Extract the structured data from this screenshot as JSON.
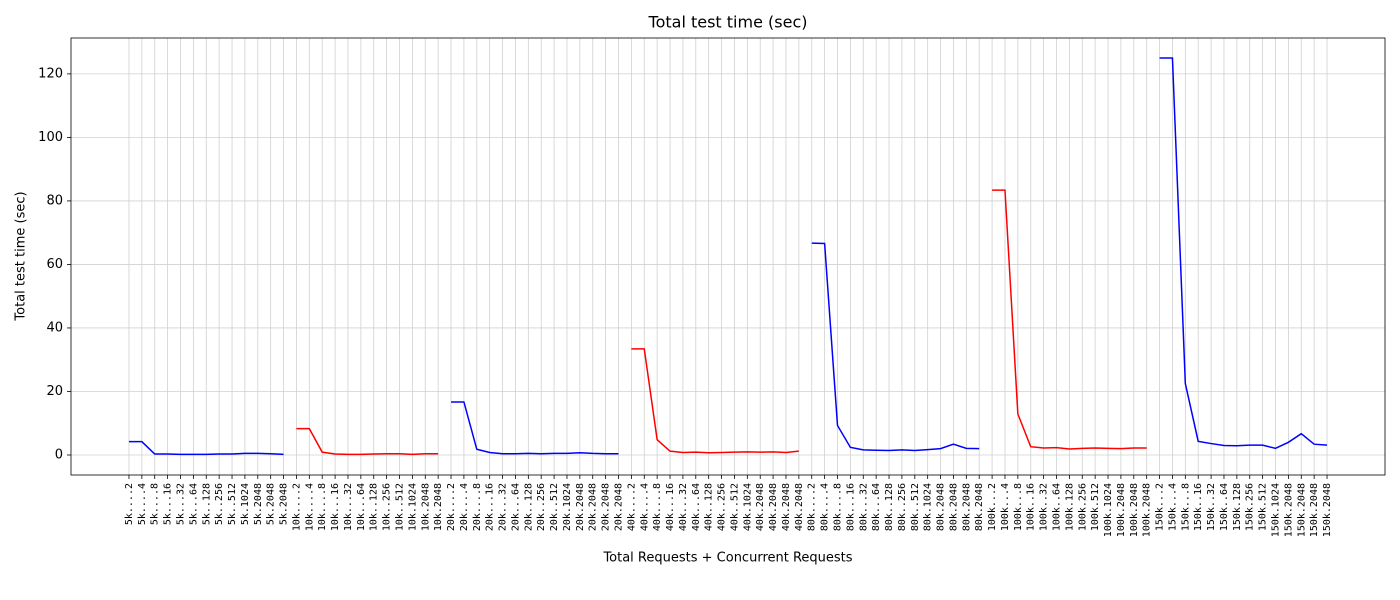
{
  "chart_data": {
    "type": "line",
    "title": "Total test time (sec)",
    "x_label": "Total Requests + Concurrent Requests",
    "y_label": "Total test time (sec)",
    "categories": [
      "5k....2",
      "5k....4",
      "5k....8",
      "5k...16",
      "5k...32",
      "5k...64",
      "5k..128",
      "5k..256",
      "5k..512",
      "5k.1024",
      "5k.2048",
      "5k.2048",
      "5k.2048",
      "10k....2",
      "10k....4",
      "10k....8",
      "10k...16",
      "10k...32",
      "10k...64",
      "10k..128",
      "10k..256",
      "10k..512",
      "10k.1024",
      "10k.2048",
      "10k.2048",
      "20k....2",
      "20k....4",
      "20k....8",
      "20k...16",
      "20k...32",
      "20k...64",
      "20k..128",
      "20k..256",
      "20k..512",
      "20k.1024",
      "20k.2048",
      "20k.2048",
      "20k.2048",
      "20k.2048",
      "40k....2",
      "40k....4",
      "40k....8",
      "40k...16",
      "40k...32",
      "40k...64",
      "40k..128",
      "40k..256",
      "40k..512",
      "40k.1024",
      "40k.2048",
      "40k.2048",
      "40k.2048",
      "40k.2048",
      "80k....2",
      "80k....4",
      "80k....8",
      "80k...16",
      "80k...32",
      "80k...64",
      "80k..128",
      "80k..256",
      "80k..512",
      "80k.1024",
      "80k.2048",
      "80k.2048",
      "80k.2048",
      "80k.2048",
      "100k...2",
      "100k...4",
      "100k...8",
      "100k..16",
      "100k..32",
      "100k..64",
      "100k.128",
      "100k.256",
      "100k.512",
      "100k.1024",
      "100k.2048",
      "100k.2048",
      "100k.2048",
      "150k...2",
      "150k...4",
      "150k...8",
      "150k..16",
      "150k..32",
      "150k..64",
      "150k.128",
      "150k.256",
      "150k.512",
      "150k.1024",
      "150k.2048",
      "150k.2048",
      "150k.2048",
      "150k.2048"
    ],
    "series": [
      {
        "color": "#0000ff",
        "values": [
          4.2,
          4.2,
          0.3,
          0.3,
          0.2,
          0.2,
          0.2,
          0.3,
          0.3,
          0.5,
          0.5,
          0.4,
          0.2,
          null,
          null,
          null,
          null,
          null,
          null,
          null,
          null,
          null,
          null,
          null,
          null,
          16.7,
          16.7,
          1.8,
          0.8,
          0.4,
          0.4,
          0.5,
          0.4,
          0.5,
          0.5,
          0.7,
          0.5,
          0.4,
          0.4,
          null,
          null,
          null,
          null,
          null,
          null,
          null,
          null,
          null,
          null,
          null,
          null,
          null,
          null,
          66.7,
          66.6,
          9.3,
          2.4,
          1.6,
          1.5,
          1.4,
          1.6,
          1.4,
          1.7,
          2.0,
          3.4,
          2.1,
          2.0,
          null,
          null,
          null,
          null,
          null,
          null,
          null,
          null,
          null,
          null,
          null,
          null,
          null,
          125,
          125,
          22.5,
          4.3,
          3.6,
          3.0,
          2.9,
          3.1,
          3.1,
          2.1,
          4.0,
          6.7,
          3.4,
          3.1
        ]
      },
      {
        "color": "#ff0000",
        "values": [
          null,
          null,
          null,
          null,
          null,
          null,
          null,
          null,
          null,
          null,
          null,
          null,
          null,
          8.3,
          8.3,
          0.9,
          0.3,
          0.2,
          0.2,
          0.3,
          0.4,
          0.4,
          0.2,
          0.4,
          0.4,
          null,
          null,
          null,
          null,
          null,
          null,
          null,
          null,
          null,
          null,
          null,
          null,
          null,
          null,
          33.4,
          33.4,
          4.8,
          1.2,
          0.8,
          0.9,
          0.7,
          0.8,
          0.9,
          1.0,
          0.9,
          1.0,
          0.8,
          1.2,
          null,
          null,
          null,
          null,
          null,
          null,
          null,
          null,
          null,
          null,
          null,
          null,
          null,
          null,
          83.4,
          83.4,
          12.9,
          2.6,
          2.2,
          2.3,
          1.9,
          2.1,
          2.2,
          2.1,
          2.0,
          2.2,
          2.2,
          null,
          null,
          null,
          null,
          null,
          null,
          null,
          null,
          null,
          null,
          null,
          null,
          null,
          null
        ]
      }
    ],
    "ylim": [
      -6.3,
      131.3
    ],
    "yticks": [
      0,
      20,
      40,
      60,
      80,
      100,
      120
    ],
    "grid": true
  }
}
